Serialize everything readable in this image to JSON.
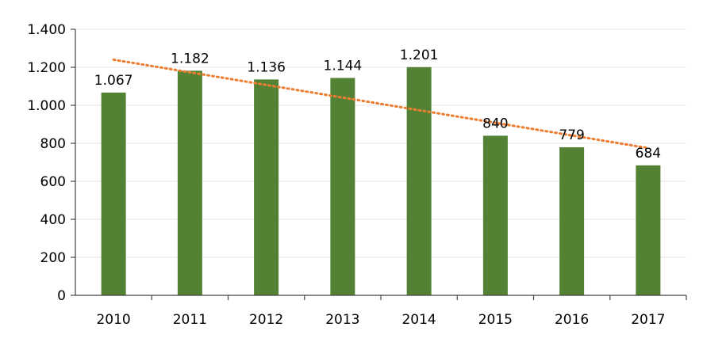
{
  "chart_data": {
    "type": "bar",
    "categories": [
      "2010",
      "2011",
      "2012",
      "2013",
      "2014",
      "2015",
      "2016",
      "2017"
    ],
    "values": [
      1067,
      1182,
      1136,
      1144,
      1201,
      840,
      779,
      684
    ],
    "data_labels": [
      "1.067",
      "1.182",
      "1.136",
      "1.144",
      "1.201",
      "840",
      "779",
      "684"
    ],
    "ylim": [
      0,
      1400
    ],
    "yticks": [
      0,
      200,
      400,
      600,
      800,
      1000,
      1200,
      1400
    ],
    "ytick_labels": [
      "0",
      "200",
      "400",
      "600",
      "800",
      "1.000",
      "1.200",
      "1.400"
    ],
    "grid": true,
    "trendline": {
      "type": "linear",
      "style": "dotted",
      "start": 1240,
      "end": 775
    },
    "colors": {
      "bar": "#548235",
      "trend": "#ed7d31",
      "grid": "#e6e6e6"
    },
    "title": "",
    "xlabel": "",
    "ylabel": ""
  }
}
